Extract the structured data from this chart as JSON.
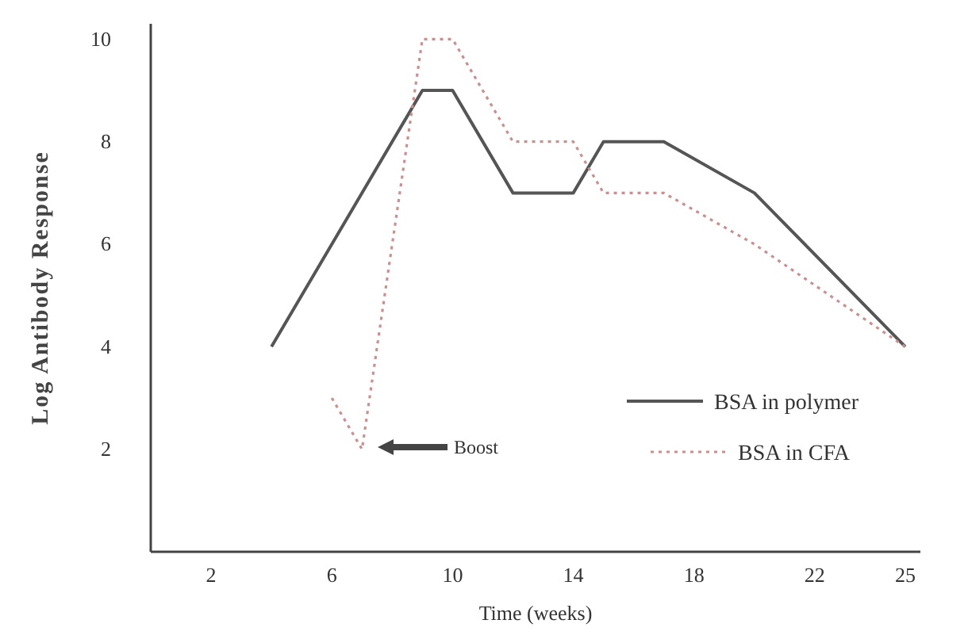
{
  "chart_data": {
    "type": "line",
    "xlabel": "Time (weeks)",
    "ylabel": "Log Antibody Response",
    "xlim": [
      0,
      25.5
    ],
    "xticks": [
      2,
      6,
      10,
      14,
      18,
      22,
      25
    ],
    "ylim": [
      0,
      10.3
    ],
    "yticks": [
      2,
      4,
      6,
      8,
      10
    ],
    "series": [
      {
        "name": "BSA in polymer",
        "color": "#555555",
        "line_style": "solid",
        "x": [
          4,
          9,
          10,
          12,
          14,
          15,
          17,
          20,
          25
        ],
        "values": [
          4,
          9,
          9,
          7,
          7,
          8,
          8,
          7,
          4
        ]
      },
      {
        "name": "BSA in CFA",
        "color": "#c89090",
        "line_style": "dotted",
        "x": [
          6,
          7,
          9,
          10,
          12,
          14,
          15,
          17,
          20,
          25
        ],
        "values": [
          3,
          2,
          10,
          10,
          8,
          8,
          7,
          7,
          6,
          4
        ]
      }
    ],
    "annotations": [
      "Boost"
    ],
    "legend": "bottom right",
    "grid": false,
    "marker": "none"
  }
}
